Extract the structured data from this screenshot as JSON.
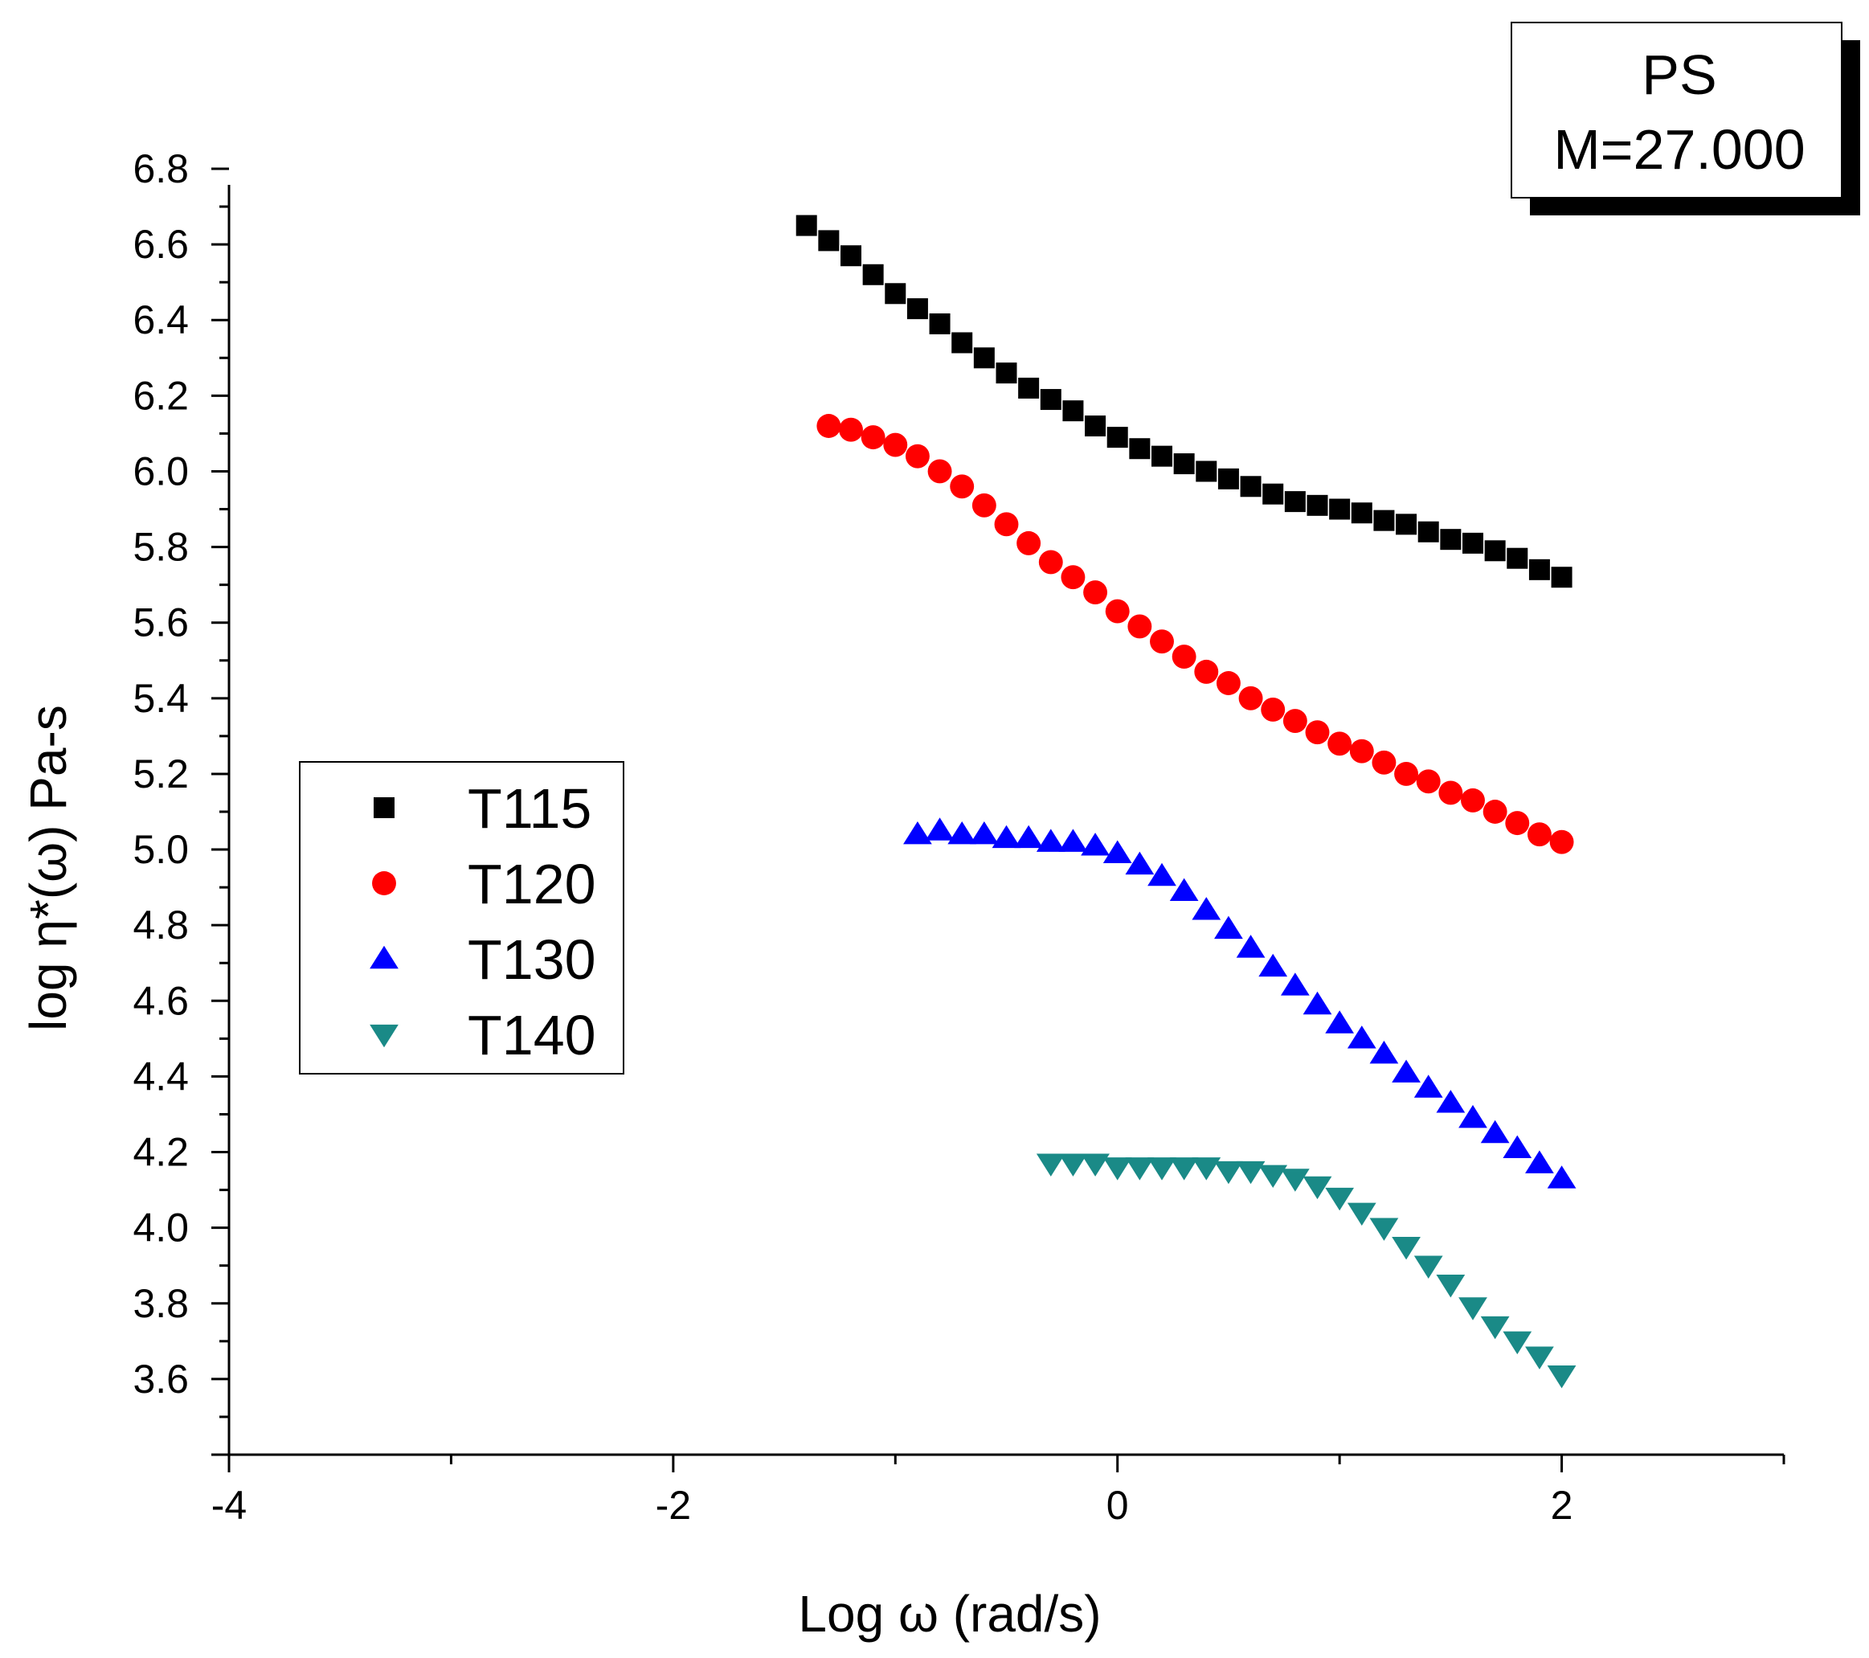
{
  "chart_data": {
    "type": "scatter",
    "title": "",
    "xlabel": "Log ω (rad/s)",
    "ylabel": "log η*(ω) Pa-s",
    "xlim": [
      -4,
      3
    ],
    "ylim": [
      3.4,
      6.8
    ],
    "xticks": [
      -4,
      -2,
      0,
      2
    ],
    "xtick_labels": [
      "-4",
      "-2",
      "0",
      "2"
    ],
    "yticks": [
      3.6,
      3.8,
      4.0,
      4.2,
      4.4,
      4.6,
      4.8,
      5.0,
      5.2,
      5.4,
      5.6,
      5.8,
      6.0,
      6.2,
      6.4,
      6.6,
      6.8
    ],
    "ytick_labels": [
      "3.6",
      "3.8",
      "4.0",
      "4.2",
      "4.4",
      "4.6",
      "4.8",
      "5.0",
      "5.2",
      "5.4",
      "5.6",
      "5.8",
      "6.0",
      "6.2",
      "6.4",
      "6.6",
      "6.8"
    ],
    "grid": false,
    "legend_position": "left-middle",
    "annotation_box": [
      "PS",
      "M=27.000"
    ],
    "series": [
      {
        "name": "T115",
        "marker": "square",
        "color": "#000000",
        "x": [
          -1.4,
          -1.3,
          -1.2,
          -1.1,
          -1.0,
          -0.9,
          -0.8,
          -0.7,
          -0.6,
          -0.5,
          -0.4,
          -0.3,
          -0.2,
          -0.1,
          0.0,
          0.1,
          0.2,
          0.3,
          0.4,
          0.5,
          0.6,
          0.7,
          0.8,
          0.9,
          1.0,
          1.1,
          1.2,
          1.3,
          1.4,
          1.5,
          1.6,
          1.7,
          1.8,
          1.9,
          2.0
        ],
        "y": [
          6.65,
          6.61,
          6.57,
          6.52,
          6.47,
          6.43,
          6.39,
          6.34,
          6.3,
          6.26,
          6.22,
          6.19,
          6.16,
          6.12,
          6.09,
          6.06,
          6.04,
          6.02,
          6.0,
          5.98,
          5.96,
          5.94,
          5.92,
          5.91,
          5.9,
          5.89,
          5.87,
          5.86,
          5.84,
          5.82,
          5.81,
          5.79,
          5.77,
          5.74,
          5.72
        ]
      },
      {
        "name": "T120",
        "marker": "circle",
        "color": "#ff0000",
        "x": [
          -1.3,
          -1.2,
          -1.1,
          -1.0,
          -0.9,
          -0.8,
          -0.7,
          -0.6,
          -0.5,
          -0.4,
          -0.3,
          -0.2,
          -0.1,
          0.0,
          0.1,
          0.2,
          0.3,
          0.4,
          0.5,
          0.6,
          0.7,
          0.8,
          0.9,
          1.0,
          1.1,
          1.2,
          1.3,
          1.4,
          1.5,
          1.6,
          1.7,
          1.8,
          1.9,
          2.0
        ],
        "y": [
          6.12,
          6.11,
          6.09,
          6.07,
          6.04,
          6.0,
          5.96,
          5.91,
          5.86,
          5.81,
          5.76,
          5.72,
          5.68,
          5.63,
          5.59,
          5.55,
          5.51,
          5.47,
          5.44,
          5.4,
          5.37,
          5.34,
          5.31,
          5.28,
          5.26,
          5.23,
          5.2,
          5.18,
          5.15,
          5.13,
          5.1,
          5.07,
          5.04,
          5.02
        ]
      },
      {
        "name": "T130",
        "marker": "triangle-up",
        "color": "#0000ff",
        "x": [
          -0.9,
          -0.8,
          -0.7,
          -0.6,
          -0.5,
          -0.4,
          -0.3,
          -0.2,
          -0.1,
          0.0,
          0.1,
          0.2,
          0.3,
          0.4,
          0.5,
          0.6,
          0.7,
          0.8,
          0.9,
          1.0,
          1.1,
          1.2,
          1.3,
          1.4,
          1.5,
          1.6,
          1.7,
          1.8,
          1.9,
          2.0
        ],
        "y": [
          5.04,
          5.05,
          5.04,
          5.04,
          5.03,
          5.03,
          5.02,
          5.02,
          5.01,
          4.99,
          4.96,
          4.93,
          4.89,
          4.84,
          4.79,
          4.74,
          4.69,
          4.64,
          4.59,
          4.54,
          4.5,
          4.46,
          4.41,
          4.37,
          4.33,
          4.29,
          4.25,
          4.21,
          4.17,
          4.13
        ]
      },
      {
        "name": "T140",
        "marker": "triangle-down",
        "color": "#1a8a87",
        "x": [
          -0.3,
          -0.2,
          -0.1,
          0.0,
          0.1,
          0.2,
          0.3,
          0.4,
          0.5,
          0.6,
          0.7,
          0.8,
          0.9,
          1.0,
          1.1,
          1.2,
          1.3,
          1.4,
          1.5,
          1.6,
          1.7,
          1.8,
          1.9,
          2.0
        ],
        "y": [
          4.17,
          4.17,
          4.17,
          4.16,
          4.16,
          4.16,
          4.16,
          4.16,
          4.15,
          4.15,
          4.14,
          4.13,
          4.11,
          4.08,
          4.04,
          4.0,
          3.95,
          3.9,
          3.85,
          3.79,
          3.74,
          3.7,
          3.66,
          3.61
        ]
      }
    ]
  }
}
